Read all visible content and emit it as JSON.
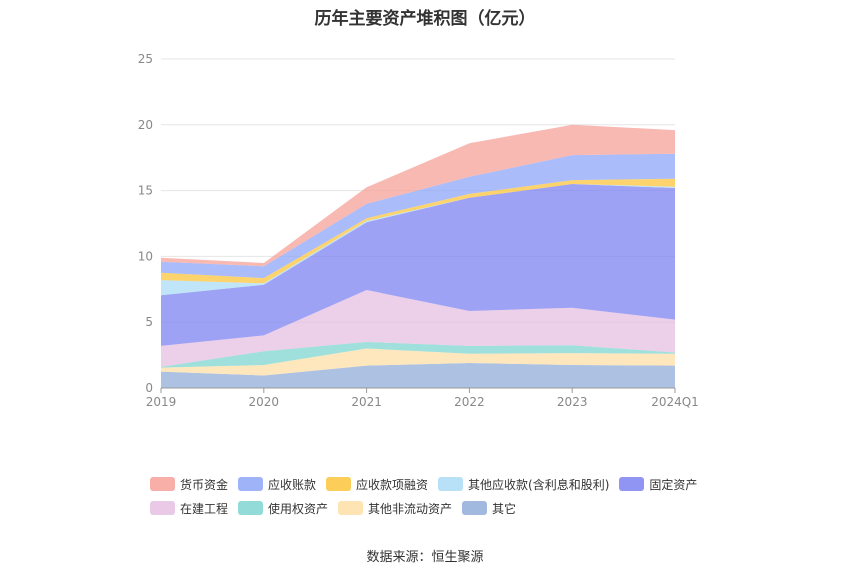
{
  "title": "历年主要资产堆积图（亿元）",
  "source": "数据来源：恒生聚源",
  "chart_data": {
    "type": "area",
    "stacked": true,
    "title": "历年主要资产堆积图（亿元）",
    "categories": [
      "2019",
      "2020",
      "2021",
      "2022",
      "2023",
      "2024Q1"
    ],
    "ylim": [
      0,
      25
    ],
    "yticks": [
      0,
      5,
      10,
      15,
      20,
      25
    ],
    "grid": true,
    "legend_position": "bottom",
    "series": [
      {
        "name": "其它",
        "color": "#91acd9",
        "values": [
          1.25,
          0.95,
          1.7,
          1.9,
          1.75,
          1.7
        ]
      },
      {
        "name": "其他非流动资产",
        "color": "#fddfa5",
        "values": [
          0.3,
          0.8,
          1.3,
          0.7,
          0.9,
          0.9
        ]
      },
      {
        "name": "使用权资产",
        "color": "#7fd5d2",
        "values": [
          0.05,
          1.05,
          0.5,
          0.6,
          0.6,
          0.1
        ]
      },
      {
        "name": "在建工程",
        "color": "#e5bfe0",
        "values": [
          1.6,
          1.2,
          3.95,
          2.65,
          2.85,
          2.5
        ]
      },
      {
        "name": "固定资产",
        "color": "#7d83f2",
        "values": [
          3.85,
          3.85,
          5.15,
          8.6,
          9.4,
          10.0
        ]
      },
      {
        "name": "其他应收款(含利息和股利)",
        "color": "#abdcf6",
        "values": [
          1.15,
          0.1,
          0.1,
          0.0,
          0.0,
          0.1
        ]
      },
      {
        "name": "应收款项融资",
        "color": "#fbc43b",
        "values": [
          0.55,
          0.4,
          0.2,
          0.3,
          0.3,
          0.6
        ]
      },
      {
        "name": "应收账款",
        "color": "#8ea6f7",
        "values": [
          0.85,
          0.9,
          1.1,
          1.3,
          1.9,
          1.9
        ]
      },
      {
        "name": "货币资金",
        "color": "#f7a199",
        "values": [
          0.3,
          0.25,
          1.25,
          2.55,
          2.3,
          1.8
        ]
      }
    ]
  }
}
